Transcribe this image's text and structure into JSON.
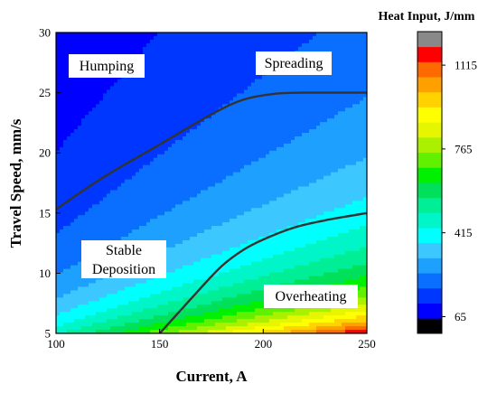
{
  "chart_data": {
    "type": "heatmap",
    "title": "",
    "xlabel": "Current, A",
    "ylabel": "Travel Speed, mm/s",
    "xlim": [
      100,
      250
    ],
    "ylim": [
      5,
      30
    ],
    "x_ticks": [
      "100",
      "150",
      "200",
      "250"
    ],
    "y_ticks": [
      "5",
      "10",
      "15",
      "20",
      "25",
      "30"
    ],
    "colorbar": {
      "title": "Heat Input, J/mm",
      "range": [
        -5,
        1255
      ],
      "tick_values": [
        65,
        415,
        765,
        1115
      ],
      "tick_labels": [
        "65",
        "415",
        "765",
        "1115"
      ],
      "colors": [
        "#000000",
        "#0000ff",
        "#0037ff",
        "#0a6eff",
        "#1ea0ff",
        "#3cc8ff",
        "#00ffff",
        "#00f5c8",
        "#00ee96",
        "#00e05a",
        "#00f000",
        "#60f000",
        "#aaf000",
        "#e6f500",
        "#ffff00",
        "#ffd200",
        "#ffa000",
        "#ff6a00",
        "#ff0000",
        "#898989"
      ]
    },
    "regions": [
      {
        "label": "Humping"
      },
      {
        "label": "Spreading"
      },
      {
        "label": "Stable Deposition",
        "lines": [
          "Stable",
          "Deposition"
        ]
      },
      {
        "label": "Overheating"
      }
    ],
    "boundary_curves": [
      {
        "points": [
          [
            100,
            15.3
          ],
          [
            110,
            16.5
          ],
          [
            125,
            18.2
          ],
          [
            150,
            20.7
          ],
          [
            175,
            23.2
          ],
          [
            190,
            24.4
          ],
          [
            205,
            24.9
          ],
          [
            220,
            25.0
          ],
          [
            250,
            25.0
          ]
        ]
      },
      {
        "points": [
          [
            150,
            5.0
          ],
          [
            160,
            6.9
          ],
          [
            170,
            8.8
          ],
          [
            180,
            10.6
          ],
          [
            190,
            11.9
          ],
          [
            200,
            12.8
          ],
          [
            215,
            13.8
          ],
          [
            230,
            14.4
          ],
          [
            250,
            15.0
          ]
        ]
      }
    ]
  }
}
